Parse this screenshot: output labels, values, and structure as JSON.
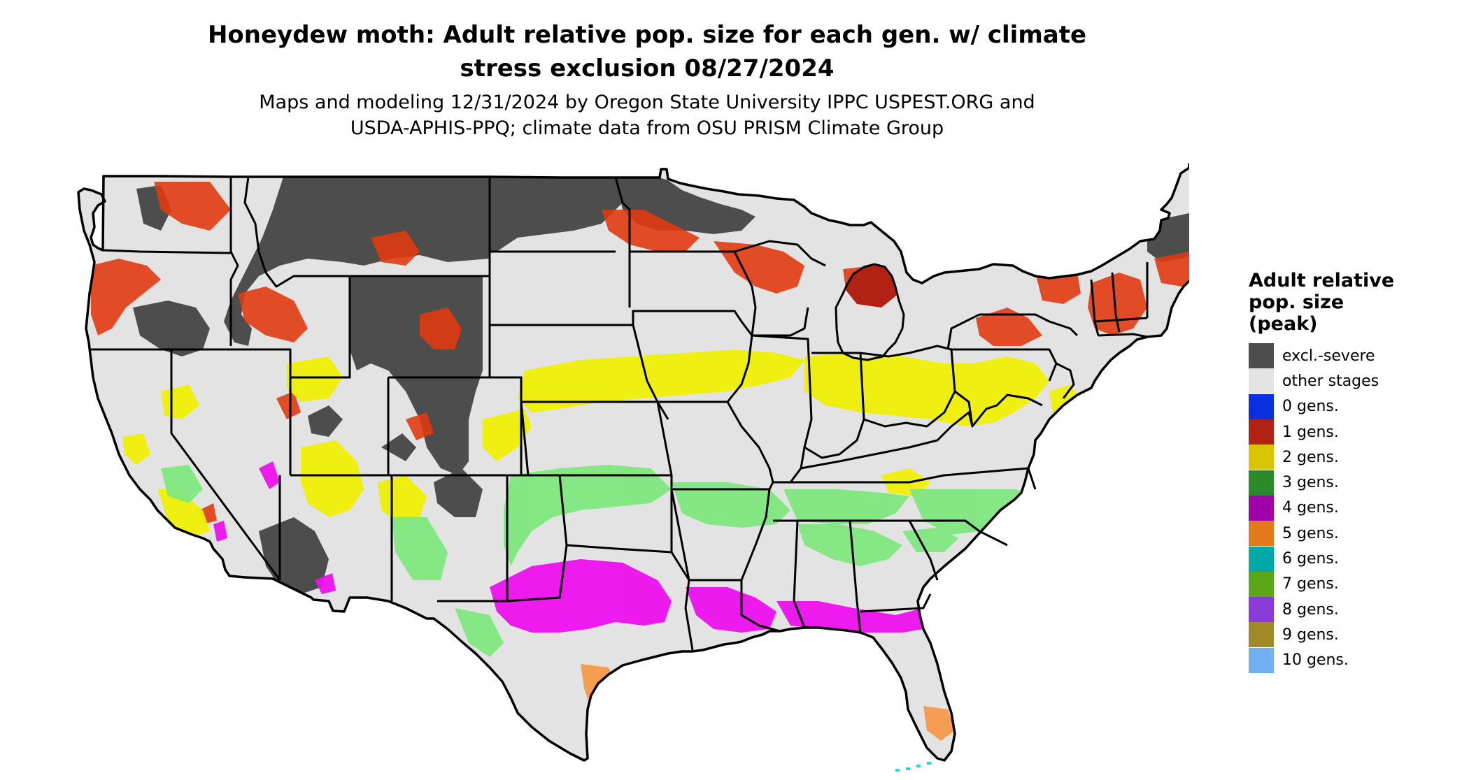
{
  "header": {
    "title_line1": "Honeydew moth: Adult relative pop. size for each gen. w/ climate",
    "title_line2": "stress exclusion 08/27/2024",
    "subtitle_line1": "Maps and modeling 12/31/2024 by Oregon State University IPPC USPEST.ORG and",
    "subtitle_line2": "USDA-APHIS-PPQ; climate data from OSU PRISM Climate Group"
  },
  "legend": {
    "title_line1": "Adult relative",
    "title_line2": "pop. size",
    "title_line3": "(peak)",
    "items": [
      {
        "label": "excl.-severe",
        "color": "#4d4d4d"
      },
      {
        "label": "other stages",
        "color": "#e3e3e3"
      },
      {
        "label": "0 gens.",
        "color": "#0a2fe0"
      },
      {
        "label": "1 gens.",
        "color": "#b22214"
      },
      {
        "label": "2 gens.",
        "color": "#d8c400"
      },
      {
        "label": "3 gens.",
        "color": "#2a8a2a"
      },
      {
        "label": "4 gens.",
        "color": "#a000a8"
      },
      {
        "label": "5 gens.",
        "color": "#e07a1a"
      },
      {
        "label": "6 gens.",
        "color": "#00a8a8"
      },
      {
        "label": "7 gens.",
        "color": "#5aa818"
      },
      {
        "label": "8 gens.",
        "color": "#8a3ad8"
      },
      {
        "label": "9 gens.",
        "color": "#a08a28"
      },
      {
        "label": "10 gens.",
        "color": "#70b0f0"
      }
    ]
  },
  "map_colors": {
    "land": "#e3e3e3",
    "excluded": "#4d4d4d",
    "gen1_overlay": "#e03a10",
    "gen2_overlay": "#f0f000",
    "gen3_overlay": "#7de87d",
    "gen4_overlay": "#ee10ee",
    "gen5_overlay": "#f59a4a",
    "gen6_overlay": "#20d8e0",
    "border": "#000000"
  }
}
